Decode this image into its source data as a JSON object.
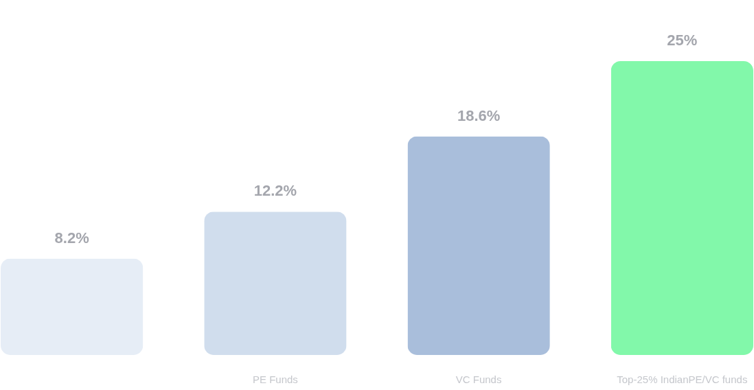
{
  "chart_data": {
    "type": "bar",
    "categories": [
      null,
      "PE Funds",
      "VC Funds",
      "Top-25% IndianPE/VC funds"
    ],
    "values": [
      8.2,
      12.2,
      18.6,
      25
    ],
    "value_labels": [
      "8.2%",
      "12.2%",
      "18.6%",
      "25%"
    ],
    "colors": [
      "#e6edf6",
      "#d0dded",
      "#a9bedb",
      "#82f8aa"
    ],
    "grid": false,
    "legend": false
  }
}
